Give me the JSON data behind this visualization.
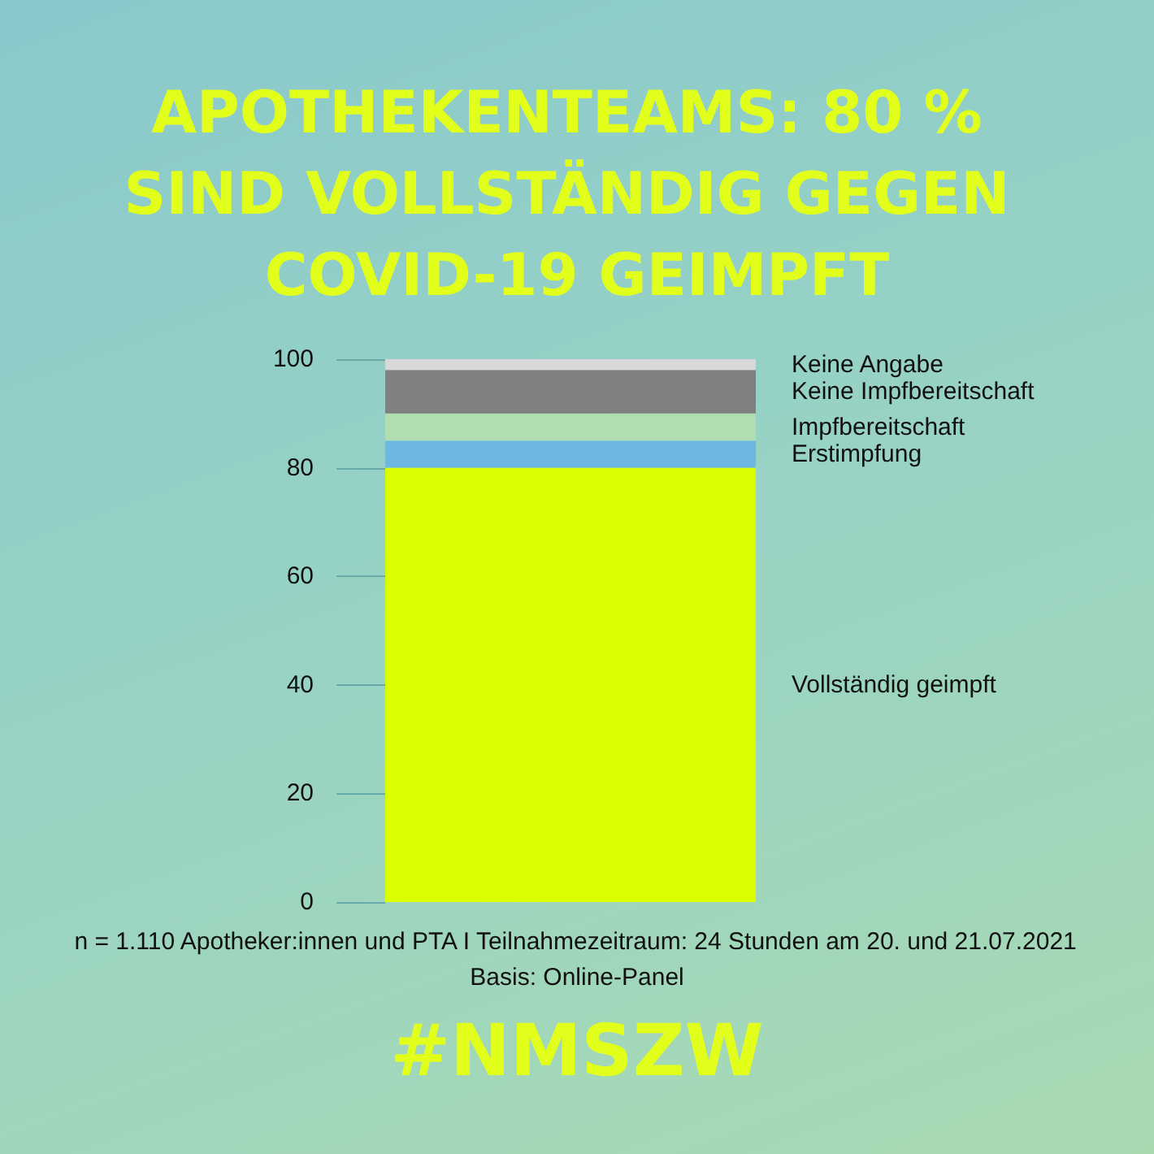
{
  "chart_data": {
    "type": "bar",
    "title": "APOTHEKENTEAMS: 80 % SIND VOLLSTÄNDIG GEGEN COVID-19 GEIMPFT",
    "categories": [
      null
    ],
    "stacked": true,
    "series": [
      {
        "name": "Vollständig geimpft",
        "color": "#dcff00",
        "values": [
          80
        ]
      },
      {
        "name": "Erstimpfung",
        "color": "#6cb8e2",
        "values": [
          5
        ]
      },
      {
        "name": "Impfbereitschaft",
        "color": "#b0deb0",
        "values": [
          5
        ]
      },
      {
        "name": "Keine Impfbereitschaft",
        "color": "#808080",
        "values": [
          8
        ]
      },
      {
        "name": "Keine Angabe",
        "color": "#d8d8d8",
        "values": [
          2
        ]
      }
    ],
    "ylim": [
      0,
      100
    ],
    "yticks": [
      0,
      20,
      40,
      60,
      80,
      100
    ],
    "grid": false,
    "annotations": [
      "n = 1.110 Apotheker:innen und PTA I Teilnahmezeitraum: 24 Stunden am 20. und 21.07.2021",
      "Basis: Online-Panel",
      "#NMSZW"
    ]
  }
}
